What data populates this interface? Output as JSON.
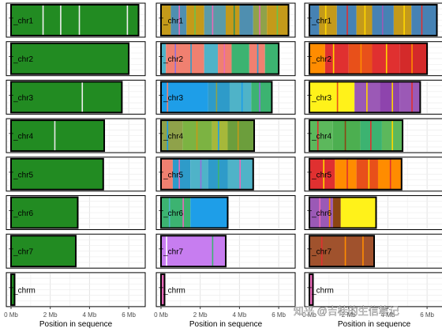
{
  "chart_data": {
    "type": "bar",
    "xlabel": "Position in sequence",
    "xlim_mb": [
      0,
      6.6
    ],
    "x_ticks": [
      {
        "value": 0,
        "label": "0 Mb"
      },
      {
        "value": 2,
        "label": "2 Mb"
      },
      {
        "value": 4,
        "label": "4 Mb"
      },
      {
        "value": 6,
        "label": "6 Mb"
      }
    ],
    "chromosomes": [
      {
        "label": "T_chr1",
        "length_mb": 6.5
      },
      {
        "label": "T_chr2",
        "length_mb": 6.0
      },
      {
        "label": "T_chr3",
        "length_mb": 5.65
      },
      {
        "label": "T_chr4",
        "length_mb": 4.75
      },
      {
        "label": "T_chr5",
        "length_mb": 4.7
      },
      {
        "label": "T_chr6",
        "length_mb": 3.4
      },
      {
        "label": "T_chr7",
        "length_mb": 3.3
      },
      {
        "label": "T_chrm",
        "length_mb": 0.18
      }
    ],
    "panels": [
      {
        "chromosomes": [
          {
            "segments": [
              {
                "end": 6.5,
                "color": "#228B22"
              }
            ],
            "stripes": [
              {
                "at": 1.6,
                "color": "#f0f0f0"
              },
              {
                "at": 2.5,
                "color": "#f0f0f0"
              },
              {
                "at": 3.45,
                "color": "#f0f0f0"
              },
              {
                "at": 5.9,
                "color": "#f0f0f0"
              }
            ]
          },
          {
            "segments": [
              {
                "end": 6.0,
                "color": "#228B22"
              }
            ],
            "stripes": []
          },
          {
            "segments": [
              {
                "end": 5.65,
                "color": "#228B22"
              }
            ],
            "stripes": [
              {
                "at": 3.6,
                "color": "#f0f0f0"
              }
            ]
          },
          {
            "segments": [
              {
                "end": 4.75,
                "color": "#228B22"
              }
            ],
            "stripes": [
              {
                "at": 2.2,
                "color": "#e8e8e8"
              }
            ]
          },
          {
            "segments": [
              {
                "end": 4.7,
                "color": "#228B22"
              }
            ],
            "stripes": []
          },
          {
            "segments": [
              {
                "end": 3.4,
                "color": "#228B22"
              }
            ],
            "stripes": []
          },
          {
            "segments": [
              {
                "end": 3.3,
                "color": "#228B22"
              }
            ],
            "stripes": []
          },
          {
            "segments": [
              {
                "end": 0.18,
                "color": "#228B22"
              }
            ],
            "stripes": []
          }
        ]
      },
      {
        "chromosomes": [
          {
            "segments": [
              {
                "end": 0.5,
                "color": "#C49A1A"
              },
              {
                "end": 1.3,
                "color": "#4F8FB0"
              },
              {
                "end": 2.2,
                "color": "#C49A1A"
              },
              {
                "end": 3.3,
                "color": "#5B9BA8"
              },
              {
                "end": 4.0,
                "color": "#C49A1A"
              },
              {
                "end": 4.7,
                "color": "#4F8FB0"
              },
              {
                "end": 5.4,
                "color": "#8FA24A"
              },
              {
                "end": 6.5,
                "color": "#C49A1A"
              }
            ],
            "stripes": [
              {
                "at": 0.9,
                "color": "#E86AB8"
              },
              {
                "at": 1.7,
                "color": "#6CC24A"
              },
              {
                "at": 2.6,
                "color": "#E86AB8"
              },
              {
                "at": 3.7,
                "color": "#2E8B57"
              },
              {
                "at": 5.0,
                "color": "#E86AB8"
              },
              {
                "at": 5.9,
                "color": "#6CC24A"
              }
            ]
          },
          {
            "segments": [
              {
                "end": 0.25,
                "color": "#4FB3C8"
              },
              {
                "end": 2.2,
                "color": "#F08070"
              },
              {
                "end": 2.9,
                "color": "#4FB3C8"
              },
              {
                "end": 3.6,
                "color": "#F08070"
              },
              {
                "end": 4.5,
                "color": "#3CB371"
              },
              {
                "end": 5.3,
                "color": "#F08070"
              },
              {
                "end": 6.0,
                "color": "#3CB371"
              }
            ],
            "stripes": [
              {
                "at": 0.7,
                "color": "#9370DB"
              },
              {
                "at": 1.5,
                "color": "#2E9BC9"
              },
              {
                "at": 3.2,
                "color": "#E86AB8"
              },
              {
                "at": 4.9,
                "color": "#2E9BC9"
              }
            ]
          },
          {
            "segments": [
              {
                "end": 2.4,
                "color": "#1E9EE8"
              },
              {
                "end": 3.5,
                "color": "#2E9BC9"
              },
              {
                "end": 4.6,
                "color": "#4FB3C8"
              },
              {
                "end": 5.65,
                "color": "#3CB371"
              }
            ],
            "stripes": [
              {
                "at": 0.3,
                "color": "#F08070"
              },
              {
                "at": 2.8,
                "color": "#8FA24A"
              },
              {
                "at": 4.1,
                "color": "#1E9EE8"
              },
              {
                "at": 5.0,
                "color": "#9370DB"
              }
            ]
          },
          {
            "segments": [
              {
                "end": 1.1,
                "color": "#8FA24A"
              },
              {
                "end": 2.6,
                "color": "#7CB342"
              },
              {
                "end": 3.4,
                "color": "#A6B83A"
              },
              {
                "end": 4.75,
                "color": "#6C9E3C"
              }
            ],
            "stripes": [
              {
                "at": 0.3,
                "color": "#1E9EE8"
              },
              {
                "at": 1.8,
                "color": "#C49A1A"
              },
              {
                "at": 2.9,
                "color": "#1E9EE8"
              },
              {
                "at": 3.9,
                "color": "#C49A1A"
              }
            ]
          },
          {
            "segments": [
              {
                "end": 0.6,
                "color": "#F08070"
              },
              {
                "end": 1.5,
                "color": "#2E9BC9"
              },
              {
                "end": 2.4,
                "color": "#4FB3C8"
              },
              {
                "end": 3.4,
                "color": "#2E9BC9"
              },
              {
                "end": 4.7,
                "color": "#4FB3C8"
              }
            ],
            "stripes": [
              {
                "at": 0.9,
                "color": "#E86AB8"
              },
              {
                "at": 2.0,
                "color": "#9370DB"
              },
              {
                "at": 2.9,
                "color": "#3CB371"
              },
              {
                "at": 4.0,
                "color": "#E86AB8"
              }
            ]
          },
          {
            "segments": [
              {
                "end": 1.5,
                "color": "#3CB371"
              },
              {
                "end": 3.4,
                "color": "#1E9EE8"
              }
            ],
            "stripes": [
              {
                "at": 0.4,
                "color": "#4FB3C8"
              },
              {
                "at": 1.1,
                "color": "#E86AB8"
              }
            ]
          },
          {
            "segments": [
              {
                "end": 3.3,
                "color": "#C77DF0"
              }
            ],
            "stripes": [
              {
                "at": 0.25,
                "color": "#ffffff"
              },
              {
                "at": 2.6,
                "color": "#3CB371"
              }
            ]
          },
          {
            "segments": [
              {
                "end": 0.18,
                "color": "#E86AB8"
              }
            ],
            "stripes": []
          }
        ]
      },
      {
        "chromosomes": [
          {
            "segments": [
              {
                "end": 0.5,
                "color": "#4682B4"
              },
              {
                "end": 1.4,
                "color": "#C49A1A"
              },
              {
                "end": 2.4,
                "color": "#4682B4"
              },
              {
                "end": 3.2,
                "color": "#C49A1A"
              },
              {
                "end": 4.3,
                "color": "#4682B4"
              },
              {
                "end": 5.2,
                "color": "#C49A1A"
              },
              {
                "end": 6.5,
                "color": "#4682B4"
              }
            ],
            "stripes": [
              {
                "at": 0.8,
                "color": "#FFD700"
              },
              {
                "at": 1.9,
                "color": "#E03030"
              },
              {
                "at": 2.8,
                "color": "#FFD700"
              },
              {
                "at": 3.7,
                "color": "#9B59B6"
              },
              {
                "at": 4.8,
                "color": "#FFD700"
              },
              {
                "at": 5.7,
                "color": "#E03030"
              }
            ]
          },
          {
            "segments": [
              {
                "end": 0.8,
                "color": "#FF8C00"
              },
              {
                "end": 2.0,
                "color": "#E03030"
              },
              {
                "end": 3.2,
                "color": "#E8501A"
              },
              {
                "end": 4.6,
                "color": "#E03030"
              },
              {
                "end": 6.0,
                "color": "#D42A2A"
              }
            ],
            "stripes": [
              {
                "at": 1.2,
                "color": "#FFD700"
              },
              {
                "at": 2.6,
                "color": "#FF8C00"
              },
              {
                "at": 3.9,
                "color": "#FFD700"
              },
              {
                "at": 5.2,
                "color": "#FF8C00"
              }
            ]
          },
          {
            "segments": [
              {
                "end": 2.3,
                "color": "#FFF21A"
              },
              {
                "end": 3.6,
                "color": "#9B59B6"
              },
              {
                "end": 4.6,
                "color": "#8E44AD"
              },
              {
                "end": 5.65,
                "color": "#9B59B6"
              }
            ],
            "stripes": [
              {
                "at": 1.4,
                "color": "#E8501A"
              },
              {
                "at": 2.9,
                "color": "#FFD700"
              },
              {
                "at": 4.2,
                "color": "#FFD700"
              },
              {
                "at": 5.2,
                "color": "#E03030"
              }
            ]
          },
          {
            "segments": [
              {
                "end": 1.2,
                "color": "#5CB85C"
              },
              {
                "end": 2.6,
                "color": "#4CAF50"
              },
              {
                "end": 3.7,
                "color": "#3CB371"
              },
              {
                "end": 4.75,
                "color": "#5CB85C"
              }
            ],
            "stripes": [
              {
                "at": 0.4,
                "color": "#E03030"
              },
              {
                "at": 1.8,
                "color": "#8B4513"
              },
              {
                "at": 3.1,
                "color": "#E03030"
              },
              {
                "at": 4.2,
                "color": "#FFD700"
              }
            ]
          },
          {
            "segments": [
              {
                "end": 1.3,
                "color": "#E03030"
              },
              {
                "end": 2.4,
                "color": "#FF8C00"
              },
              {
                "end": 3.5,
                "color": "#E8501A"
              },
              {
                "end": 4.7,
                "color": "#FF8C00"
              }
            ],
            "stripes": [
              {
                "at": 0.7,
                "color": "#FFD700"
              },
              {
                "at": 1.9,
                "color": "#E03030"
              },
              {
                "at": 3.0,
                "color": "#FFD700"
              },
              {
                "at": 4.1,
                "color": "#E03030"
              }
            ]
          },
          {
            "segments": [
              {
                "end": 1.2,
                "color": "#9B59B6"
              },
              {
                "end": 1.6,
                "color": "#8B4513"
              },
              {
                "end": 3.4,
                "color": "#FFF21A"
              }
            ],
            "stripes": [
              {
                "at": 0.5,
                "color": "#E86AB8"
              },
              {
                "at": 1.0,
                "color": "#FF8C00"
              }
            ]
          },
          {
            "segments": [
              {
                "end": 3.3,
                "color": "#A0522D"
              }
            ],
            "stripes": [
              {
                "at": 0.6,
                "color": "#E03030"
              },
              {
                "at": 1.8,
                "color": "#FF8C00"
              },
              {
                "at": 2.7,
                "color": "#FF8C00"
              }
            ]
          },
          {
            "segments": [
              {
                "end": 0.18,
                "color": "#E86AB8"
              }
            ],
            "stripes": []
          }
        ]
      }
    ],
    "grid": true
  },
  "watermark": "知乎 @吉桂的生信笔记"
}
